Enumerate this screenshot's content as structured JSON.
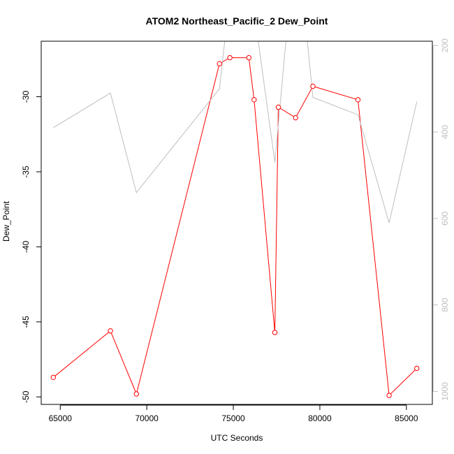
{
  "chart_data": {
    "type": "line",
    "title": "ATOM2 Northeast_Pacific_2 Dew_Point",
    "xlabel": "UTC Seconds",
    "ylabel": "Dew_Point",
    "xlim": [
      63900,
      86500
    ],
    "ylim": [
      -50.5,
      -26.3
    ],
    "y2lim": [
      1030,
      190
    ],
    "x_ticks": [
      65000,
      70000,
      75000,
      80000,
      85000
    ],
    "x_tick_labels": [
      "65000",
      "70000",
      "75000",
      "80000",
      "85000"
    ],
    "y_ticks": [
      -50,
      -45,
      -40,
      -35,
      -30
    ],
    "y_tick_labels": [
      "-50",
      "-45",
      "-40",
      "-35",
      "-30"
    ],
    "y2_ticks": [
      200,
      400,
      600,
      800,
      1000
    ],
    "y2_tick_labels": [
      "200",
      "400",
      "600",
      "800",
      "1000"
    ],
    "grid": false,
    "colors": {
      "dew_point": "#ff0000",
      "pressure": "#bebebe",
      "axis": "#000000",
      "right_axis": "#bebebe"
    },
    "series": [
      {
        "axis": "left",
        "marker": "circle",
        "x": [
          64600,
          67900,
          69400,
          74200,
          74800,
          75900,
          76200,
          77400,
          77600,
          78600,
          79600,
          82200,
          84000,
          85600
        ],
        "values": [
          -48.7,
          -45.6,
          -49.8,
          -27.8,
          -27.4,
          -27.4,
          -30.2,
          -45.7,
          -30.7,
          -31.4,
          -29.3,
          -30.2,
          -49.9,
          -48.1
        ]
      },
      {
        "axis": "right",
        "marker": "none",
        "x": [
          64600,
          67900,
          69400,
          74200,
          74700,
          76200,
          77400,
          78200,
          79100,
          79600,
          82200,
          84000,
          85600
        ],
        "values": [
          390,
          310,
          540,
          300,
          120,
          120,
          470,
          120,
          120,
          320,
          360,
          610,
          330
        ]
      }
    ]
  }
}
